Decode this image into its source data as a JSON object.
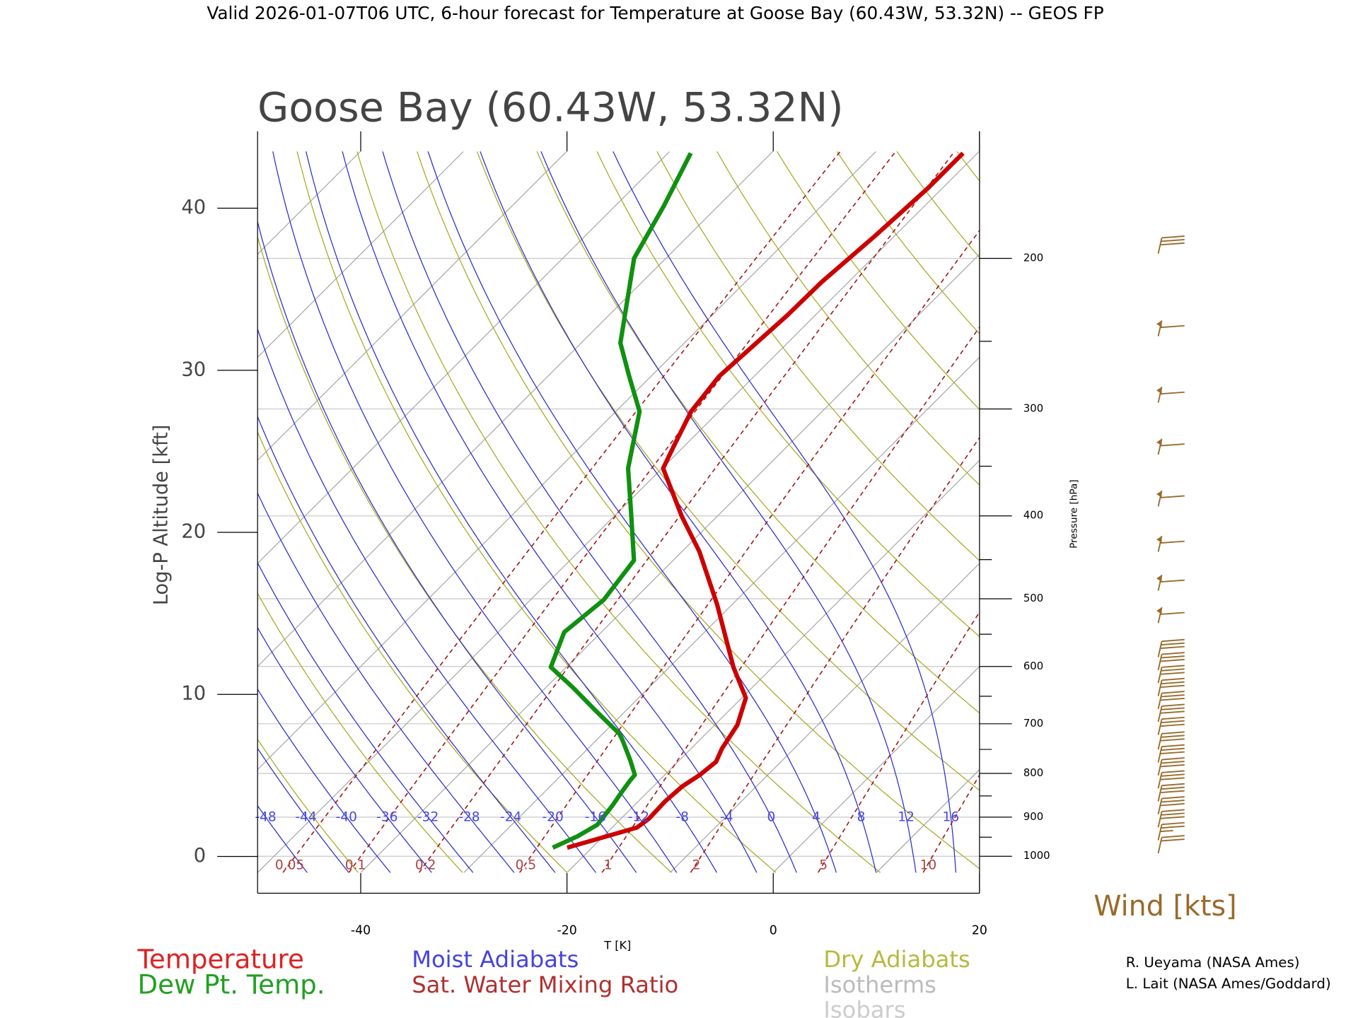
{
  "header": "Valid 2026-01-07T06 UTC, 6-hour forecast for Temperature at Goose Bay (60.43W, 53.32N) -- GEOS FP",
  "chart_data": {
    "type": "skewt",
    "title": "Goose Bay (60.43W, 53.32N)",
    "y_label": "Log-P Altitude [kft]",
    "x_label": "T [K]",
    "y2_label": "Pressure [hPa]",
    "xlim": [
      -50,
      20
    ],
    "xticks": [
      -40,
      -20,
      0,
      20
    ],
    "ylim": [
      -1,
      43.5
    ],
    "yticks": [
      0,
      10,
      20,
      30,
      40
    ],
    "y2lim": [
      1045,
      150
    ],
    "y2_log": true,
    "y2ticks": [
      1000,
      900,
      800,
      700,
      600,
      500,
      400,
      300,
      200
    ],
    "y2_minor_ticks": [
      950,
      850,
      750,
      650,
      550,
      450,
      350,
      250
    ],
    "series": [
      {
        "name": "Temperature",
        "color": "#cc0000",
        "y": [
          0.54,
          1.78,
          2.32,
          3.41,
          4.32,
          5.03,
          5.84,
          6.65,
          8.11,
          9.78,
          11.68,
          15.57,
          18.81,
          20.97,
          23.95,
          25.3,
          27.46,
          29.62,
          33.4,
          35.46,
          38.27,
          41.24,
          43.4
        ],
        "x": [
          -22.4,
          -17.6,
          -17.3,
          -17.4,
          -17.2,
          -16.6,
          -16.3,
          -17.0,
          -17.8,
          -19.6,
          -23.8,
          -31.5,
          -38.3,
          -43.4,
          -49.9,
          -51.0,
          -52.7,
          -53.4,
          -52.7,
          -52.6,
          -51.9,
          -51.4,
          -51.4
        ]
      },
      {
        "name": "Dew Pt. Temp.",
        "color": "#109010",
        "y": [
          0.54,
          1.24,
          1.95,
          3.14,
          3.95,
          4.65,
          5.03,
          5.95,
          7.19,
          7.57,
          9.08,
          10.43,
          11.68,
          13.84,
          15.84,
          18.27,
          20.97,
          23.95,
          27.46,
          29.62,
          31.68,
          36.92,
          40.16,
          43.4
        ],
        "x": [
          -23.8,
          -22.5,
          -21.7,
          -22.1,
          -22.5,
          -22.8,
          -22.9,
          -24.8,
          -27.5,
          -28.4,
          -33.2,
          -37.4,
          -41.5,
          -43.6,
          -42.9,
          -43.8,
          -48.3,
          -53.3,
          -57.7,
          -62.1,
          -66.2,
          -73.1,
          -75.3,
          -77.8
        ]
      }
    ],
    "moist_adiabats": {
      "name": "Moist Adiabats",
      "color": "#2a2ad0",
      "values": [
        -48,
        -44,
        -40,
        -36,
        -32,
        -28,
        -24,
        -20,
        -16,
        -12,
        -8,
        -4,
        0,
        4,
        8,
        12,
        16
      ]
    },
    "mixing_ratio": {
      "name": "Sat. Water Mixing Ratio",
      "color": "#a01818",
      "values": [
        0.05,
        0.1,
        0.2,
        0.5,
        1,
        2,
        5,
        10
      ]
    },
    "dry_adiabats": {
      "name": "Dry Adiabats",
      "color": "#a8a820"
    },
    "isotherms": {
      "name": "Isotherms",
      "color": "#a8a8a8"
    },
    "isobars": {
      "name": "Isobars",
      "color": "#c8c8c8"
    },
    "winds": {
      "title": "Wind [kts]",
      "color": "#9a6a2a",
      "altitude": [
        37.2,
        32.1,
        28.0,
        24.8,
        21.6,
        18.8,
        16.4,
        14.4,
        12.3,
        11.5,
        10.7,
        9.9,
        9.1,
        8.3,
        7.5,
        6.6,
        5.8,
        5.0,
        4.2,
        3.4,
        2.6,
        1.8,
        1.0,
        0.2
      ],
      "speed": [
        30,
        60,
        60,
        60,
        60,
        60,
        60,
        60,
        30,
        30,
        30,
        30,
        30,
        30,
        30,
        30,
        30,
        30,
        30,
        30,
        30,
        30,
        25,
        20
      ]
    },
    "credits": [
      "R. Ueyama (NASA Ames)",
      "L. Lait (NASA Ames/Goddard)"
    ]
  }
}
